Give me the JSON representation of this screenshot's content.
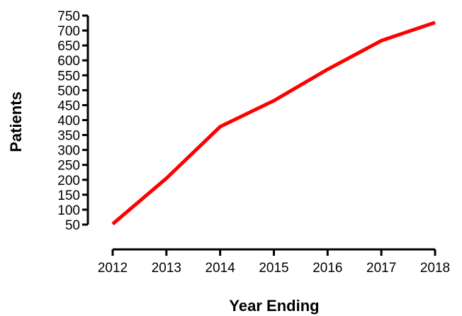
{
  "chart_data": {
    "type": "line",
    "title": "",
    "xlabel": "Year Ending",
    "ylabel": "Patients",
    "x": [
      2012,
      2013,
      2014,
      2015,
      2016,
      2017,
      2018
    ],
    "series": [
      {
        "name": "",
        "values": [
          52,
          205,
          378,
          465,
          570,
          666,
          727
        ],
        "color": "#ff0000"
      }
    ],
    "xticks": [
      "2012",
      "2013",
      "2014",
      "2015",
      "2016",
      "2017",
      "2018"
    ],
    "yticks": [
      "50",
      "100",
      "150",
      "200",
      "250",
      "300",
      "350",
      "400",
      "450",
      "500",
      "550",
      "600",
      "650",
      "700",
      "750"
    ],
    "ylim": [
      50,
      750
    ],
    "grid": false,
    "legend": "none"
  }
}
